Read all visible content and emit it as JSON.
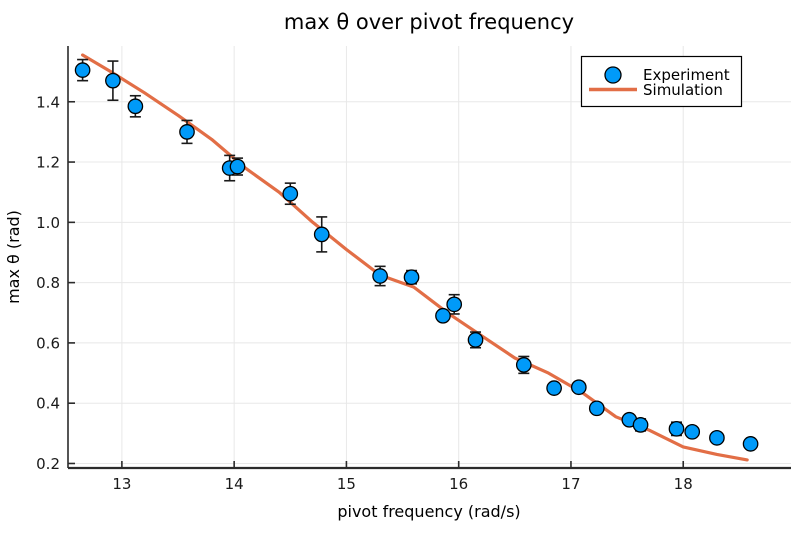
{
  "title": "max θ over pivot frequency",
  "chart_data": {
    "type": "scatter",
    "title": "max θ over pivot frequency",
    "xlabel": "pivot frequency (rad/s)",
    "ylabel": "max θ (rad)",
    "xlim": [
      12.52,
      18.96
    ],
    "ylim": [
      0.185,
      1.585
    ],
    "x_ticks": [
      13,
      14,
      15,
      16,
      17,
      18
    ],
    "x_tick_labels": [
      "13",
      "14",
      "15",
      "16",
      "17",
      "18"
    ],
    "y_ticks": [
      0.2,
      0.4,
      0.6,
      0.8,
      1.0,
      1.2,
      1.4
    ],
    "y_tick_labels": [
      "0.2",
      "0.4",
      "0.6",
      "0.8",
      "1.0",
      "1.2",
      "1.4"
    ],
    "grid": true,
    "legend_position": "top-right",
    "series": [
      {
        "name": "Experiment",
        "type": "scatter-errorbar",
        "color": "#009AF9",
        "marker_stroke": "#000000",
        "x": [
          12.65,
          12.92,
          13.12,
          13.58,
          13.96,
          14.03,
          14.5,
          14.78,
          15.3,
          15.58,
          15.86,
          15.96,
          16.15,
          16.58,
          16.85,
          17.07,
          17.23,
          17.52,
          17.62,
          17.94,
          18.08,
          18.3,
          18.6
        ],
        "y": [
          1.505,
          1.47,
          1.385,
          1.3,
          1.18,
          1.185,
          1.095,
          0.96,
          0.822,
          0.818,
          0.69,
          0.728,
          0.61,
          0.527,
          0.45,
          0.453,
          0.383,
          0.345,
          0.328,
          0.315,
          0.305,
          0.285,
          0.265
        ],
        "yerr": [
          0.035,
          0.065,
          0.035,
          0.038,
          0.042,
          0.028,
          0.035,
          0.058,
          0.032,
          0.022,
          0.016,
          0.032,
          0.026,
          0.028,
          0.012,
          0.012,
          0.014,
          0.012,
          0.02,
          0.022,
          0.012,
          0.012,
          0.015
        ]
      },
      {
        "name": "Simulation",
        "type": "line",
        "color": "#E26E46",
        "x": [
          12.65,
          12.9,
          13.2,
          13.5,
          13.8,
          14.1,
          14.4,
          14.7,
          15.0,
          15.3,
          15.6,
          15.9,
          16.2,
          16.5,
          16.8,
          17.1,
          17.4,
          17.7,
          18.0,
          18.3,
          18.57
        ],
        "y": [
          1.555,
          1.5,
          1.43,
          1.355,
          1.275,
          1.18,
          1.1,
          1.0,
          0.91,
          0.825,
          0.785,
          0.7,
          0.625,
          0.55,
          0.5,
          0.435,
          0.355,
          0.31,
          0.255,
          0.23,
          0.212
        ]
      }
    ],
    "colors": {
      "marker_fill": "#009AF9",
      "marker_stroke": "#000000",
      "line": "#E26E46",
      "errorbar": "#1a1a1a",
      "grid": "#e8e8e8",
      "spine": "#2b2b2b",
      "background": "#ffffff",
      "legend_border": "#000000"
    }
  }
}
